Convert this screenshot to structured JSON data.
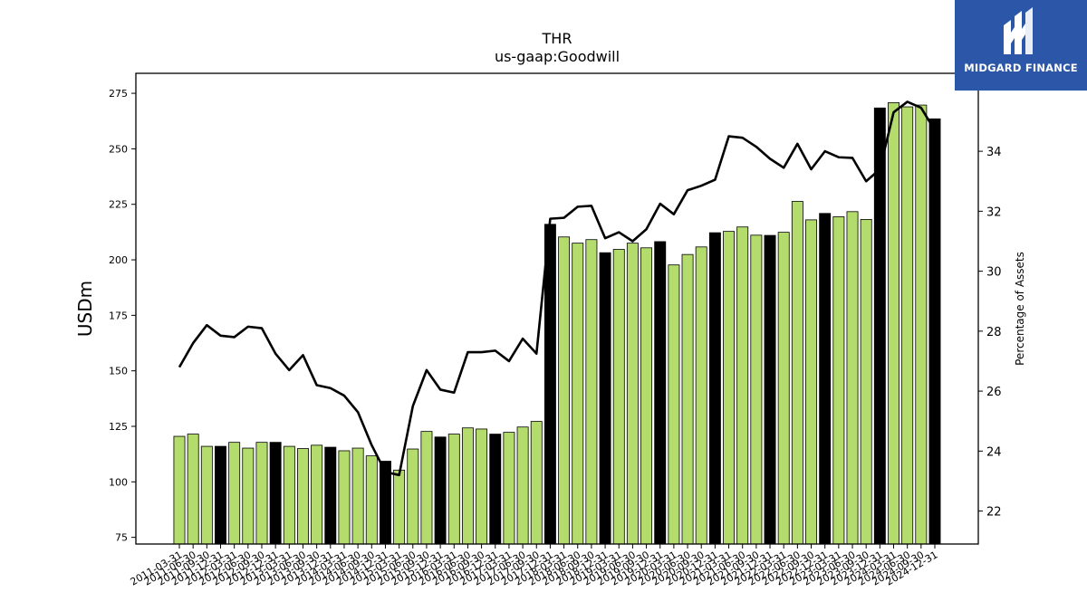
{
  "chart_data": {
    "type": "bar",
    "title": "THR",
    "subtitle": "us-gaap:Goodwill",
    "ylabel": "USDm",
    "y2label": "Percentage of Assets",
    "ylim": [
      72,
      284
    ],
    "y2lim": [
      20.9,
      36.6
    ],
    "yticks": [
      75,
      100,
      125,
      150,
      175,
      200,
      225,
      250,
      275
    ],
    "y2ticks": [
      22,
      24,
      26,
      28,
      30,
      32,
      34
    ],
    "tick_label_categories": [
      "2011-03-31",
      "2011-06-30",
      "2011-09-30",
      "2011-12-31",
      "2012-03-31",
      "2012-06-30",
      "2012-09-30",
      "2012-12-31",
      "2013-03-31",
      "2013-06-30",
      "2013-09-30",
      "2013-12-31",
      "2014-03-31",
      "2014-06-30",
      "2014-09-30",
      "2014-12-31",
      "2015-03-31",
      "2015-06-30",
      "2015-09-30",
      "2015-12-31",
      "2016-03-31",
      "2016-06-30",
      "2016-09-30",
      "2016-12-31",
      "2017-03-31",
      "2017-06-30",
      "2017-09-30",
      "2017-12-31",
      "2018-03-31",
      "2018-06-30",
      "2018-09-30",
      "2018-12-31",
      "2019-03-31",
      "2019-06-30",
      "2019-09-30",
      "2019-12-31",
      "2020-03-31",
      "2020-06-30",
      "2020-09-30",
      "2020-12-31",
      "2021-03-31",
      "2021-06-30",
      "2021-09-30",
      "2021-12-31",
      "2022-03-31",
      "2022-06-30",
      "2022-09-30",
      "2022-12-31",
      "2023-03-31",
      "2023-06-30",
      "2023-09-30",
      "2023-12-31",
      "2024-03-31",
      "2024-06-30",
      "2024-09-30",
      "2024-12-31"
    ],
    "bar_values": [
      120.5,
      121.5,
      116,
      116,
      117.8,
      115.2,
      117.8,
      117.8,
      116,
      115,
      116.5,
      115.6,
      114,
      115.2,
      111.7,
      109.3,
      105.3,
      114.8,
      122.7,
      120.2,
      121.5,
      124.3,
      123.8,
      121.5,
      122.3,
      124.7,
      127.2,
      216,
      210.3,
      207.5,
      209.1,
      203.2,
      204.7,
      207.5,
      205.4,
      208.2,
      197.7,
      202.4,
      205.8,
      212.2,
      212.8,
      214.8,
      211.1,
      211,
      212.4,
      226.3,
      218,
      220.9,
      219.4,
      221.7,
      218.2,
      268.4,
      270.8,
      268.9,
      269.7,
      263.5
    ],
    "bar_is_year_end": [
      false,
      false,
      false,
      true,
      false,
      false,
      false,
      true,
      false,
      false,
      false,
      true,
      false,
      false,
      false,
      true,
      false,
      false,
      false,
      true,
      false,
      false,
      false,
      true,
      false,
      false,
      false,
      true,
      false,
      false,
      false,
      true,
      false,
      false,
      false,
      true,
      false,
      false,
      false,
      true,
      false,
      false,
      false,
      true,
      false,
      false,
      false,
      true,
      false,
      false,
      false,
      true,
      false,
      false,
      false,
      true
    ],
    "line_values": [
      26.8,
      27.6,
      28.2,
      27.85,
      27.8,
      28.15,
      28.1,
      27.25,
      26.7,
      27.2,
      26.2,
      26.1,
      25.85,
      25.3,
      24.2,
      23.3,
      23.2,
      25.5,
      26.7,
      26.05,
      25.95,
      27.3,
      27.3,
      27.35,
      27.0,
      27.75,
      27.25,
      31.75,
      31.78,
      32.15,
      32.18,
      31.1,
      31.3,
      31.0,
      31.4,
      32.25,
      31.9,
      32.7,
      32.85,
      33.05,
      34.5,
      34.45,
      34.15,
      33.75,
      33.45,
      34.25,
      33.4,
      34.0,
      33.8,
      33.78,
      33.0,
      33.4,
      35.3,
      35.65,
      35.45,
      34.7
    ],
    "colors": {
      "bar": "#b3dc6c",
      "bar_year_end": "#000000",
      "line": "#000000",
      "bar_edge": "#000000"
    }
  },
  "brand": {
    "name": "MIDGARD FINANCE",
    "bg": "#2c56a8"
  }
}
